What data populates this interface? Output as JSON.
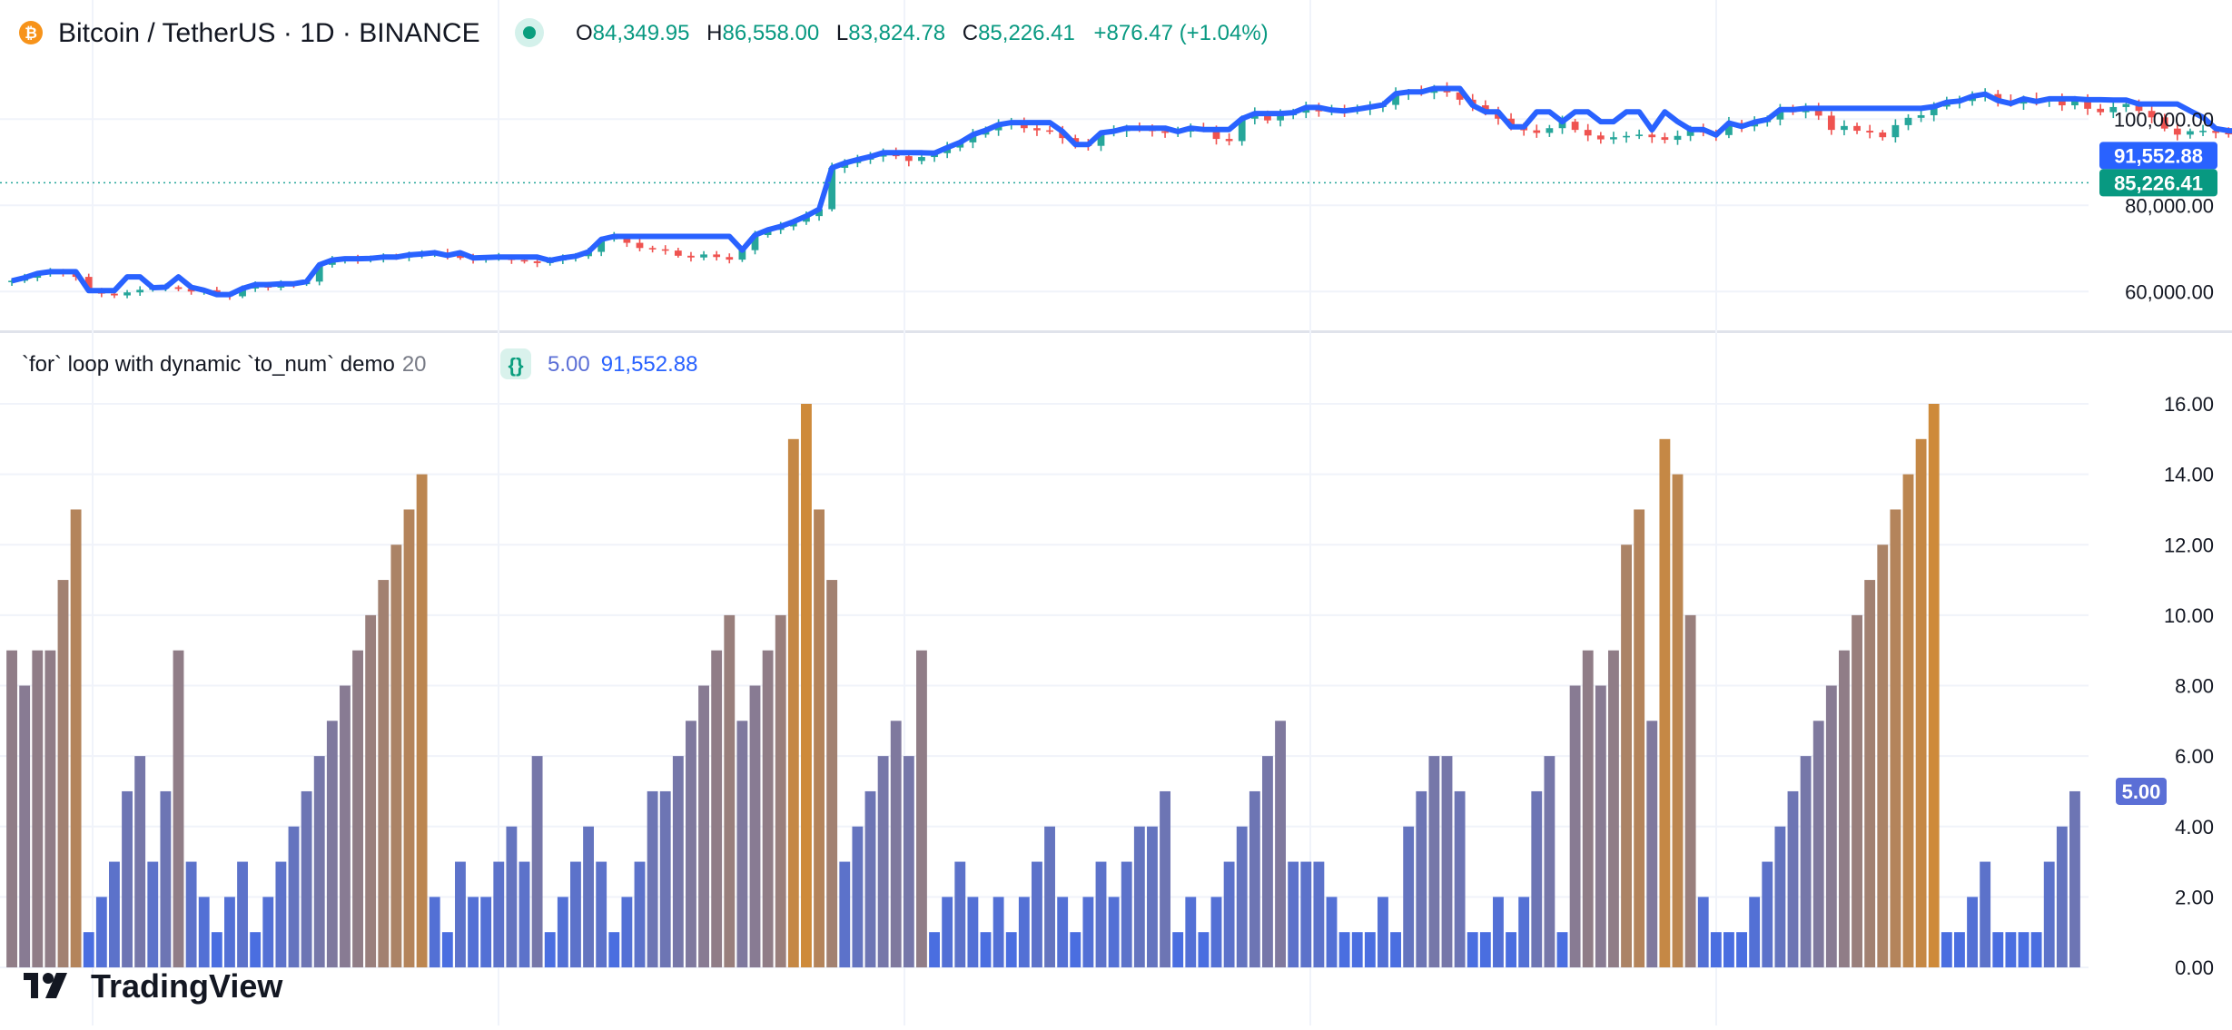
{
  "header": {
    "symbol_title": "Bitcoin / TetherUS · 1D · BINANCE",
    "o_label": "O",
    "o_value": "84,349.95",
    "h_label": "H",
    "h_value": "86,558.00",
    "l_label": "L",
    "l_value": "83,824.78",
    "c_label": "C",
    "c_value": "85,226.41",
    "change": "+876.47 (+1.04%)"
  },
  "indicator_legend": {
    "name": "`for` loop with dynamic `to_num` demo",
    "param": "20",
    "braces_icon": "{}",
    "value_count": "5.00",
    "value_price": "91,552.88"
  },
  "logo_text": "TradingView",
  "colors": {
    "up": "#26a69a",
    "down": "#ef5350",
    "line": "#2962ff",
    "grid": "#f0f3fa",
    "text": "#131722",
    "bar_low": "#4a6ee0",
    "bar_high": "#ce8a3a"
  },
  "chart_data": [
    {
      "type": "candlestick",
      "description": "BTCUSDT daily price with 20-bar highest-high style overlay",
      "ylim": [
        55000,
        115000
      ],
      "y_ticks": [
        "100,000.00",
        "80,000.00",
        "60,000.00"
      ],
      "y_tick_values": [
        100000,
        80000,
        60000
      ],
      "last_close_label": "85,226.41",
      "last_close": 85226.41,
      "line_last_label": "91,552.88",
      "line_last": 91552.88,
      "closes": [
        62500,
        63200,
        64200,
        64600,
        64100,
        63400,
        60200,
        59500,
        59100,
        59800,
        60400,
        60900,
        61000,
        60600,
        60000,
        60300,
        59300,
        58900,
        60700,
        61600,
        60900,
        61800,
        61700,
        62300,
        66200,
        67300,
        67600,
        67300,
        67700,
        68000,
        67900,
        68500,
        68700,
        69000,
        68400,
        67800,
        67400,
        67900,
        68000,
        67300,
        67000,
        66600,
        67200,
        67800,
        68200,
        69200,
        72100,
        72800,
        71300,
        70100,
        69800,
        69500,
        68300,
        67900,
        68600,
        68000,
        67400,
        69600,
        73100,
        74300,
        75100,
        76200,
        77500,
        79100,
        88700,
        89800,
        90600,
        91300,
        92200,
        91400,
        90300,
        91200,
        92100,
        93400,
        94600,
        96400,
        97400,
        98700,
        99200,
        97900,
        97400,
        97100,
        95600,
        94100,
        93800,
        96800,
        97200,
        97900,
        97800,
        97200,
        96800,
        97100,
        97900,
        97600,
        95400,
        94900,
        100100,
        101300,
        99700,
        100900,
        101500,
        102700,
        101800,
        102100,
        101900,
        102300,
        102800,
        103300,
        105900,
        106300,
        106100,
        107100,
        106200,
        104500,
        103200,
        101700,
        100100,
        98200,
        97400,
        96800,
        97900,
        99400,
        97500,
        96200,
        95300,
        95800,
        96100,
        96400,
        95800,
        95200,
        96100,
        97600,
        96900,
        96300,
        99100,
        98300,
        99300,
        99900,
        102200,
        101600,
        102500,
        100800,
        97500,
        98400,
        97300,
        96900,
        95800,
        98600,
        100300,
        100900,
        102900,
        103900,
        104200,
        105300,
        105800,
        104300,
        103600,
        104700,
        104100,
        104500,
        103200,
        104400,
        102400,
        101600,
        102800,
        103500,
        101900,
        100400,
        97800,
        96400,
        97200,
        97300,
        96800,
        96500,
        96900,
        96400,
        97400,
        96200,
        96600,
        96700,
        96200,
        96100,
        97500,
        96900,
        96600,
        97200,
        97000,
        96500,
        96500,
        95800,
        95300,
        96100,
        95700,
        95800,
        95400,
        95200,
        94300,
        93800,
        94900,
        95700,
        96600,
        96200,
        95800,
        95400,
        91700,
        88400,
        86800,
        84200,
        85000,
        84300,
        85226
      ]
    },
    {
      "type": "bar",
      "title": "`for` loop with dynamic `to_num` demo",
      "ylim": [
        0,
        16
      ],
      "y_ticks": [
        "16.00",
        "14.00",
        "12.00",
        "10.00",
        "8.00",
        "6.00",
        "4.00",
        "2.00",
        "0.00"
      ],
      "y_tick_values": [
        16,
        14,
        12,
        10,
        8,
        6,
        4,
        2,
        0
      ],
      "last_value_label": "5.00",
      "values": [
        9,
        8,
        9,
        9,
        11,
        13,
        1,
        2,
        3,
        5,
        6,
        3,
        5,
        9,
        3,
        2,
        1,
        2,
        3,
        1,
        2,
        3,
        4,
        5,
        6,
        7,
        8,
        9,
        10,
        11,
        12,
        13,
        14,
        2,
        1,
        3,
        2,
        2,
        3,
        4,
        3,
        6,
        1,
        2,
        3,
        4,
        3,
        1,
        2,
        3,
        5,
        5,
        6,
        7,
        8,
        9,
        10,
        7,
        8,
        9,
        10,
        15,
        16,
        13,
        11,
        3,
        4,
        5,
        6,
        7,
        6,
        9,
        1,
        2,
        3,
        2,
        1,
        2,
        1,
        2,
        3,
        4,
        2,
        1,
        2,
        3,
        2,
        3,
        4,
        4,
        5,
        1,
        2,
        1,
        2,
        3,
        4,
        5,
        6,
        7,
        3,
        3,
        3,
        2,
        1,
        1,
        1,
        2,
        1,
        4,
        5,
        6,
        6,
        5,
        1,
        1,
        2,
        1,
        2,
        5,
        6,
        1,
        8,
        9,
        8,
        9,
        12,
        13,
        7,
        15,
        14,
        10,
        2,
        1,
        1,
        1,
        2,
        3,
        4,
        5,
        6,
        7,
        8,
        9,
        10,
        11,
        12,
        13,
        14,
        15,
        16,
        1,
        1,
        2,
        3,
        1,
        1,
        1,
        1,
        3,
        4,
        5
      ]
    }
  ]
}
